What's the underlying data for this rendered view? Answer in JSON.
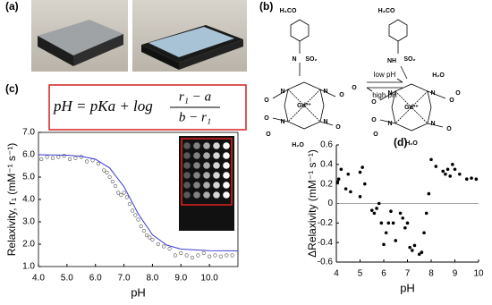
{
  "panel_labels": [
    "(a)",
    "(b)",
    "(c)",
    "(d)"
  ],
  "structure": {
    "left": [
      "H₃CO",
      "SO₂",
      "N",
      "N",
      "N",
      "N",
      "N",
      "O",
      "O",
      "O",
      "O",
      "O",
      "O",
      "H₂O",
      "Gd³⁺"
    ],
    "right": [
      "H₃CO",
      "SO₂",
      "NH",
      "H₂O",
      "N",
      "N",
      "N",
      "N",
      "O",
      "O",
      "O",
      "O",
      "O",
      "O",
      "H₂O",
      "Gd³⁺"
    ],
    "arrow_top": "low pH",
    "arrow_bottom": "high pH"
  },
  "equation": {
    "lhs": "pH = pKa + log",
    "numerator": "r₁ − a",
    "denominator": "b − r₁"
  },
  "chart_data": [
    {
      "type": "scatter",
      "ylabel": "Relaxivity, r₁ (mM⁻¹ s⁻¹)",
      "xlabel": "pH",
      "xlim": [
        4,
        11
      ],
      "ylim": [
        1,
        7
      ],
      "xticks": [
        {
          "value": 4,
          "label": "4.0"
        },
        {
          "value": 5,
          "label": "5.0"
        },
        {
          "value": 6,
          "label": "6.0"
        },
        {
          "value": 7,
          "label": "7.0"
        },
        {
          "value": 8,
          "label": "8.0"
        },
        {
          "value": 9,
          "label": "9.0"
        },
        {
          "value": 10,
          "label": "10.0"
        }
      ],
      "yticks": [
        {
          "value": 1,
          "label": "1.0"
        },
        {
          "value": 2,
          "label": "2.0"
        },
        {
          "value": 3,
          "label": "3.0"
        },
        {
          "value": 4,
          "label": "4.0"
        },
        {
          "value": 5,
          "label": "5.0"
        },
        {
          "value": 6,
          "label": "6.0"
        },
        {
          "value": 7,
          "label": "7.0"
        }
      ],
      "series": [
        {
          "type": "scatter",
          "color": "#555555",
          "x": [
            4.1,
            4.3,
            4.5,
            4.7,
            4.9,
            5.1,
            5.3,
            5.5,
            5.7,
            5.9,
            6.1,
            6.3,
            6.4,
            6.5,
            6.6,
            6.7,
            6.8,
            6.9,
            7.0,
            7.1,
            7.2,
            7.3,
            7.4,
            7.5,
            7.6,
            7.7,
            7.8,
            7.9,
            8.0,
            8.2,
            8.4,
            8.6,
            8.8,
            9.0,
            9.2,
            9.4,
            9.6,
            9.8,
            10.0,
            10.2,
            10.4,
            10.6,
            10.8
          ],
          "values": [
            5.8,
            5.9,
            5.85,
            5.9,
            5.95,
            5.8,
            5.85,
            5.9,
            5.7,
            5.75,
            5.6,
            5.3,
            5.2,
            5.0,
            4.8,
            4.6,
            4.3,
            4.2,
            4.3,
            4.1,
            3.8,
            3.5,
            3.3,
            3.1,
            2.8,
            2.6,
            2.4,
            2.3,
            2.2,
            2.0,
            1.9,
            1.8,
            1.5,
            1.6,
            1.5,
            1.4,
            1.5,
            1.6,
            1.45,
            1.5,
            1.45,
            1.5,
            1.5
          ]
        },
        {
          "type": "line",
          "color": "#3a3ad0",
          "x": [
            4,
            5,
            5.5,
            6,
            6.5,
            7,
            7.5,
            8,
            8.5,
            9,
            10,
            11
          ],
          "values": [
            6.0,
            5.98,
            5.93,
            5.8,
            5.41,
            4.57,
            3.36,
            2.42,
            1.96,
            1.78,
            1.71,
            1.7
          ]
        }
      ]
    },
    {
      "type": "scatter",
      "ylabel": "ΔRelaxivity (mM⁻¹ s⁻¹)",
      "xlabel": "pH",
      "xlim": [
        4,
        10
      ],
      "ylim": [
        -0.6,
        0.6
      ],
      "xticks": [
        4,
        5,
        6,
        7,
        8,
        9,
        10
      ],
      "yticks": [
        0.6,
        0.4,
        0.2,
        0,
        -0.2,
        -0.4,
        -0.6
      ],
      "series": [
        {
          "type": "scatter",
          "color": "#000000",
          "x": [
            4.05,
            4.1,
            4.2,
            4.4,
            4.5,
            4.6,
            5.0,
            5.0,
            5.1,
            5.2,
            5.5,
            5.6,
            5.7,
            5.8,
            5.9,
            6.0,
            6.1,
            6.2,
            6.3,
            6.4,
            6.5,
            6.7,
            6.8,
            6.9,
            7.0,
            7.1,
            7.2,
            7.3,
            7.5,
            7.6,
            7.7,
            7.8,
            7.9,
            8.0,
            8.2,
            8.5,
            8.6,
            8.7,
            8.8,
            8.9,
            9.0,
            9.2,
            9.5,
            9.7,
            9.9
          ],
          "values": [
            0.22,
            0.25,
            0.35,
            0.15,
            0.3,
            0.12,
            0.32,
            0.07,
            0.37,
            0.2,
            -0.07,
            -0.1,
            -0.05,
            0.0,
            -0.2,
            -0.42,
            -0.3,
            -0.2,
            -0.08,
            -0.2,
            -0.38,
            -0.1,
            -0.15,
            -0.25,
            -0.2,
            -0.45,
            -0.48,
            -0.43,
            -0.52,
            -0.5,
            -0.3,
            -0.1,
            0.1,
            0.45,
            0.38,
            0.33,
            0.3,
            0.35,
            0.28,
            0.4,
            0.35,
            0.3,
            0.25,
            0.26,
            0.25
          ]
        }
      ]
    }
  ]
}
